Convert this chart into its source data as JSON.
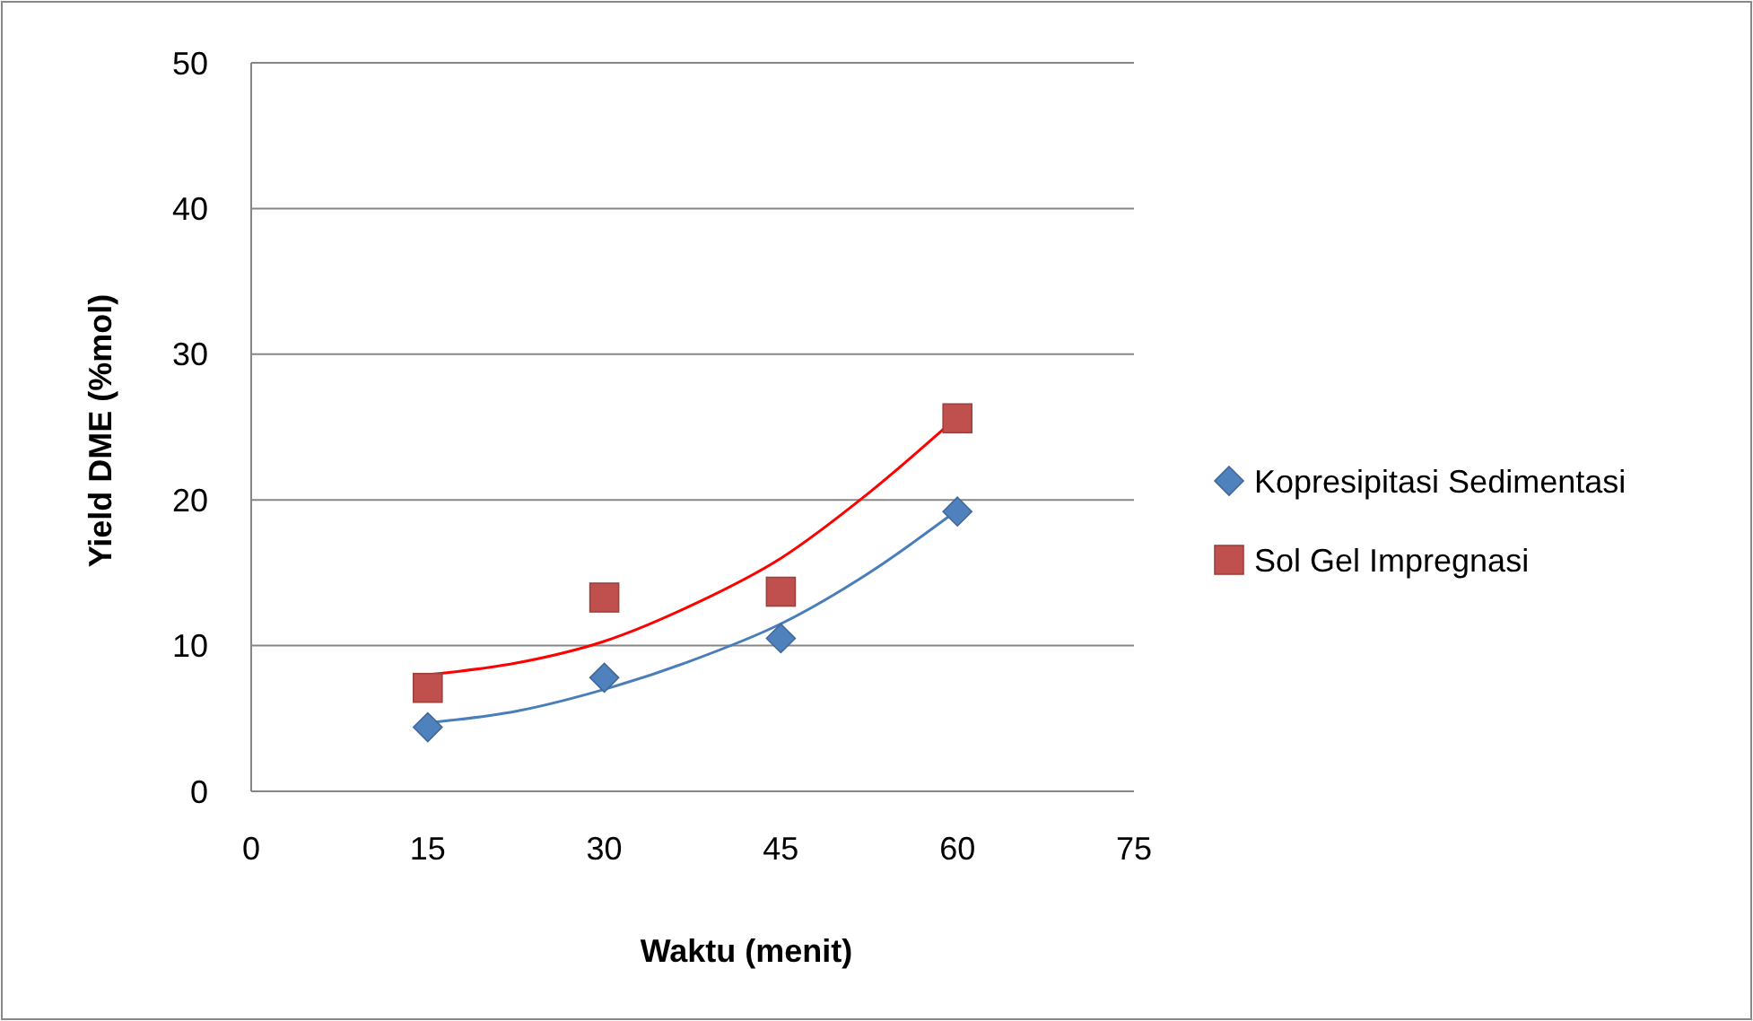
{
  "chart_data": {
    "type": "scatter",
    "xlabel": "Waktu (menit)",
    "ylabel": "Yield DME (%mol)",
    "xlim": [
      0,
      75
    ],
    "xticks": [
      0,
      15,
      30,
      45,
      60,
      75
    ],
    "ylim": [
      0,
      50
    ],
    "yticks": [
      0,
      10,
      20,
      30,
      40,
      50
    ],
    "grid": "y",
    "legend": "right",
    "series": [
      {
        "name": "Kopresipitasi Sedimentasi",
        "marker": "diamond",
        "color": "#4f81bd",
        "x": [
          15,
          30,
          45,
          60
        ],
        "values": [
          4.4,
          7.8,
          10.5,
          19.2
        ]
      },
      {
        "name": "Sol Gel Impregnasi",
        "marker": "square",
        "color": "#c0504d",
        "x": [
          15,
          30,
          45,
          60
        ],
        "values": [
          7.1,
          13.3,
          13.7,
          25.6
        ]
      },
      {
        "type": "line",
        "line_style": "solid",
        "color": "#4a7ebb",
        "x": [
          15,
          22.5,
          30,
          37.5,
          45,
          52.5,
          60
        ],
        "values": [
          4.7,
          5.5,
          7.0,
          9.0,
          11.5,
          15.0,
          19.3
        ]
      },
      {
        "type": "line",
        "line_style": "solid",
        "color": "#ff0000",
        "x": [
          15,
          22.5,
          30,
          37.5,
          45,
          52.5,
          60
        ],
        "values": [
          8.0,
          8.8,
          10.3,
          12.8,
          16.0,
          20.5,
          25.7
        ]
      }
    ]
  }
}
